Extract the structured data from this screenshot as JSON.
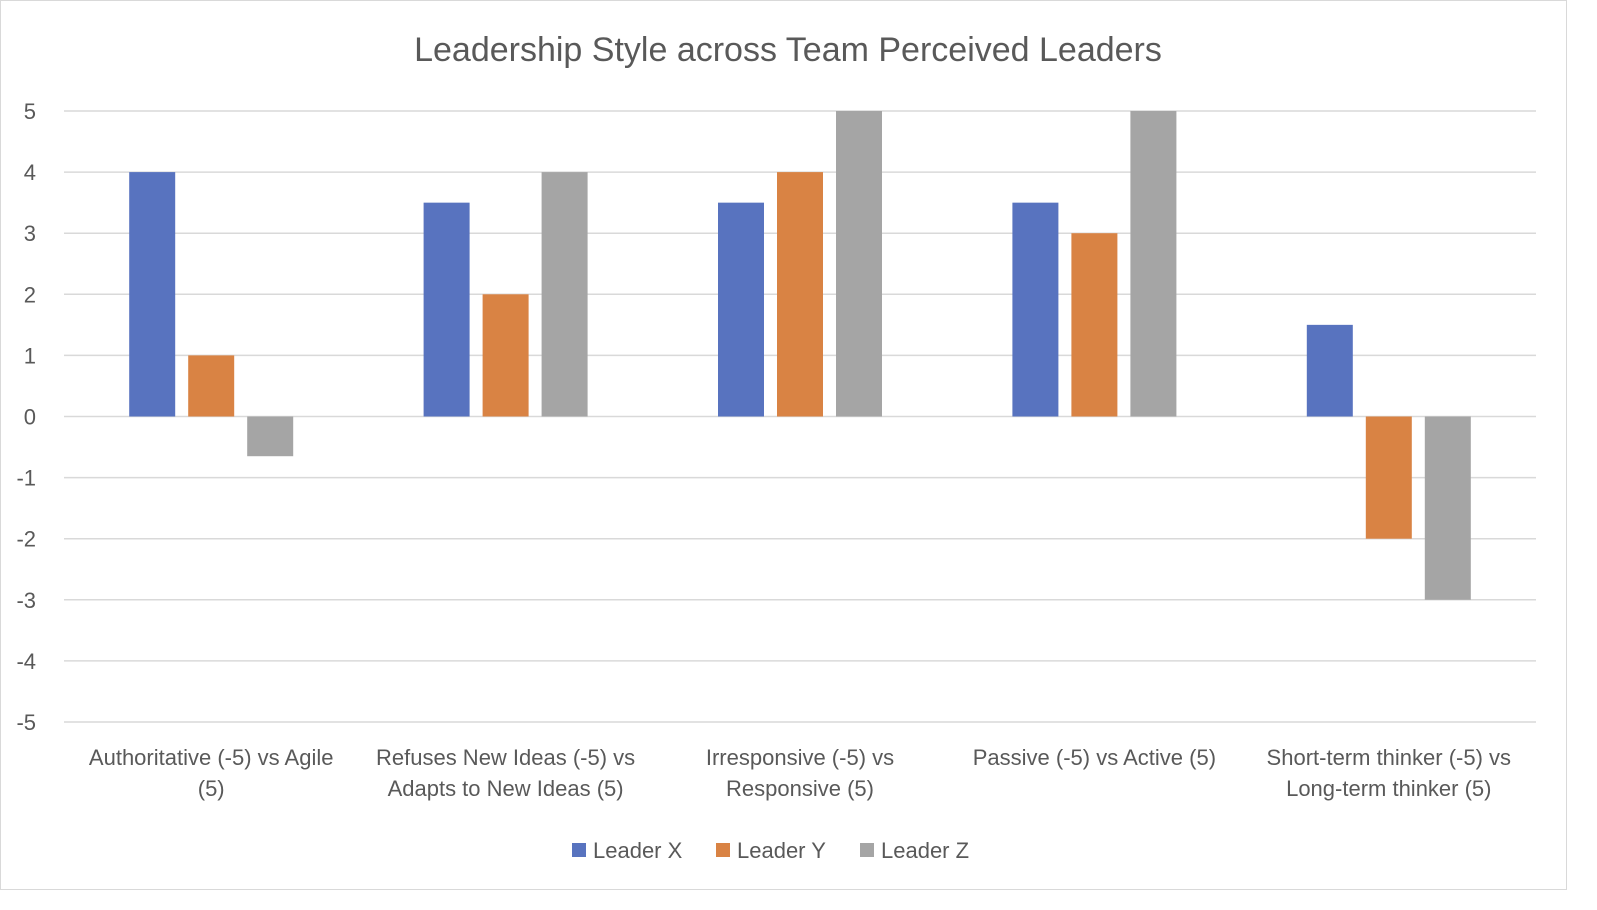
{
  "chart_data": {
    "type": "bar",
    "title": "Leadership Style across Team Perceived Leaders",
    "categories": [
      [
        "Authoritative (-5) vs Agile",
        "(5)"
      ],
      [
        "Refuses New Ideas (-5) vs",
        "Adapts to New Ideas (5)"
      ],
      [
        "Irresponsive (-5) vs",
        "Responsive (5)"
      ],
      [
        "Passive (-5) vs Active (5)"
      ],
      [
        "Short-term thinker (-5) vs",
        "Long-term thinker (5)"
      ]
    ],
    "series": [
      {
        "name": "Leader X",
        "color": "#5873bf",
        "values": [
          4,
          3.5,
          3.5,
          3.5,
          1.5
        ]
      },
      {
        "name": "Leader Y",
        "color": "#d98344",
        "values": [
          1,
          2,
          4,
          3,
          -2
        ]
      },
      {
        "name": "Leader Z",
        "color": "#a5a5a5",
        "values": [
          -0.65,
          4,
          5,
          5,
          -3
        ]
      }
    ],
    "ylim": [
      -5,
      5
    ],
    "yticks": [
      5,
      4,
      3,
      2,
      1,
      0,
      -1,
      -2,
      -3,
      -4,
      -5
    ],
    "grid": true,
    "legend_position": "bottom"
  }
}
